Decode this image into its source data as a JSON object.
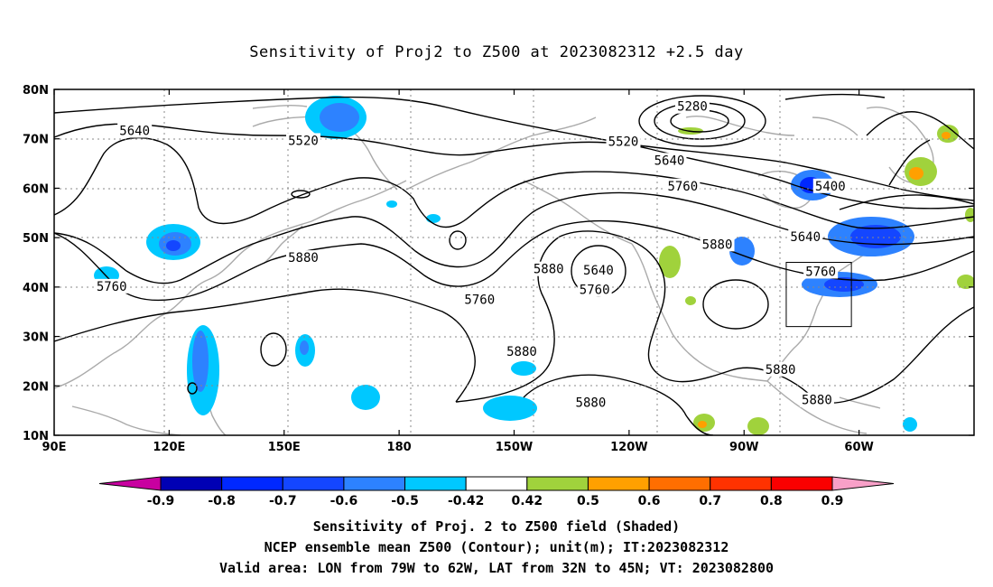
{
  "title": "Sensitivity of Proj2 to Z500 at 2023082312 +2.5 day",
  "map": {
    "lat_labels": [
      "80N",
      "70N",
      "60N",
      "50N",
      "40N",
      "30N",
      "20N",
      "10N"
    ],
    "lon_labels": [
      "90E",
      "120E",
      "150E",
      "180",
      "150W",
      "120W",
      "90W",
      "60W"
    ],
    "contour_labels": [
      {
        "text": "5280",
        "lon": -103.5,
        "lat": 76.4
      },
      {
        "text": "5640",
        "lon": 111,
        "lat": 71.5
      },
      {
        "text": "5520",
        "lon": 155,
        "lat": 69.5
      },
      {
        "text": "5520",
        "lon": -121.5,
        "lat": 69.3
      },
      {
        "text": "5640",
        "lon": -109.5,
        "lat": 65.5
      },
      {
        "text": "5760",
        "lon": -106,
        "lat": 60.3
      },
      {
        "text": "5400",
        "lon": -67.5,
        "lat": 60.3
      },
      {
        "text": "5880",
        "lon": -97,
        "lat": 48.5
      },
      {
        "text": "5640",
        "lon": -74,
        "lat": 50.0
      },
      {
        "text": "5760",
        "lon": -70,
        "lat": 43.0
      },
      {
        "text": "5880",
        "lon": 155,
        "lat": 45.8
      },
      {
        "text": "5640",
        "lon": -128,
        "lat": 43.3
      },
      {
        "text": "5760",
        "lon": -129,
        "lat": 39.3
      },
      {
        "text": "5760",
        "lon": 105,
        "lat": 40.0
      },
      {
        "text": "5880",
        "lon": -141,
        "lat": 43.5
      },
      {
        "text": "5760",
        "lon": -159,
        "lat": 37.3
      },
      {
        "text": "5880",
        "lon": -148,
        "lat": 26.8
      },
      {
        "text": "5880",
        "lon": -130,
        "lat": 16.5
      },
      {
        "text": "5880",
        "lon": -80.5,
        "lat": 23.2
      },
      {
        "text": "5880",
        "lon": -71,
        "lat": 17.0
      }
    ],
    "valid_box": {
      "lon_min": -79,
      "lon_max": -62,
      "lat_min": 32,
      "lat_max": 45
    }
  },
  "colorbar": {
    "levels": [
      "-0.9",
      "-0.8",
      "-0.7",
      "-0.6",
      "-0.5",
      "-0.42",
      "0.42",
      "0.5",
      "0.6",
      "0.7",
      "0.8",
      "0.9"
    ],
    "colors": [
      "#0000b4",
      "#0028ff",
      "#1446ff",
      "#2d82ff",
      "#00c8ff",
      "#ffffff",
      "#a0d23c",
      "#ffa000",
      "#ff6e00",
      "#ff3200",
      "#fa0000"
    ],
    "low_color": "#c800a0",
    "high_color": "#f8a0c8"
  },
  "footer": {
    "line1": "Sensitivity of Proj. 2 to Z500 field (Shaded)",
    "line2": "NCEP ensemble mean Z500 (Contour); unit(m); IT:2023082312",
    "line3": "Valid area: LON from 79W to 62W, LAT from 32N to 45N; VT: 2023082800"
  }
}
